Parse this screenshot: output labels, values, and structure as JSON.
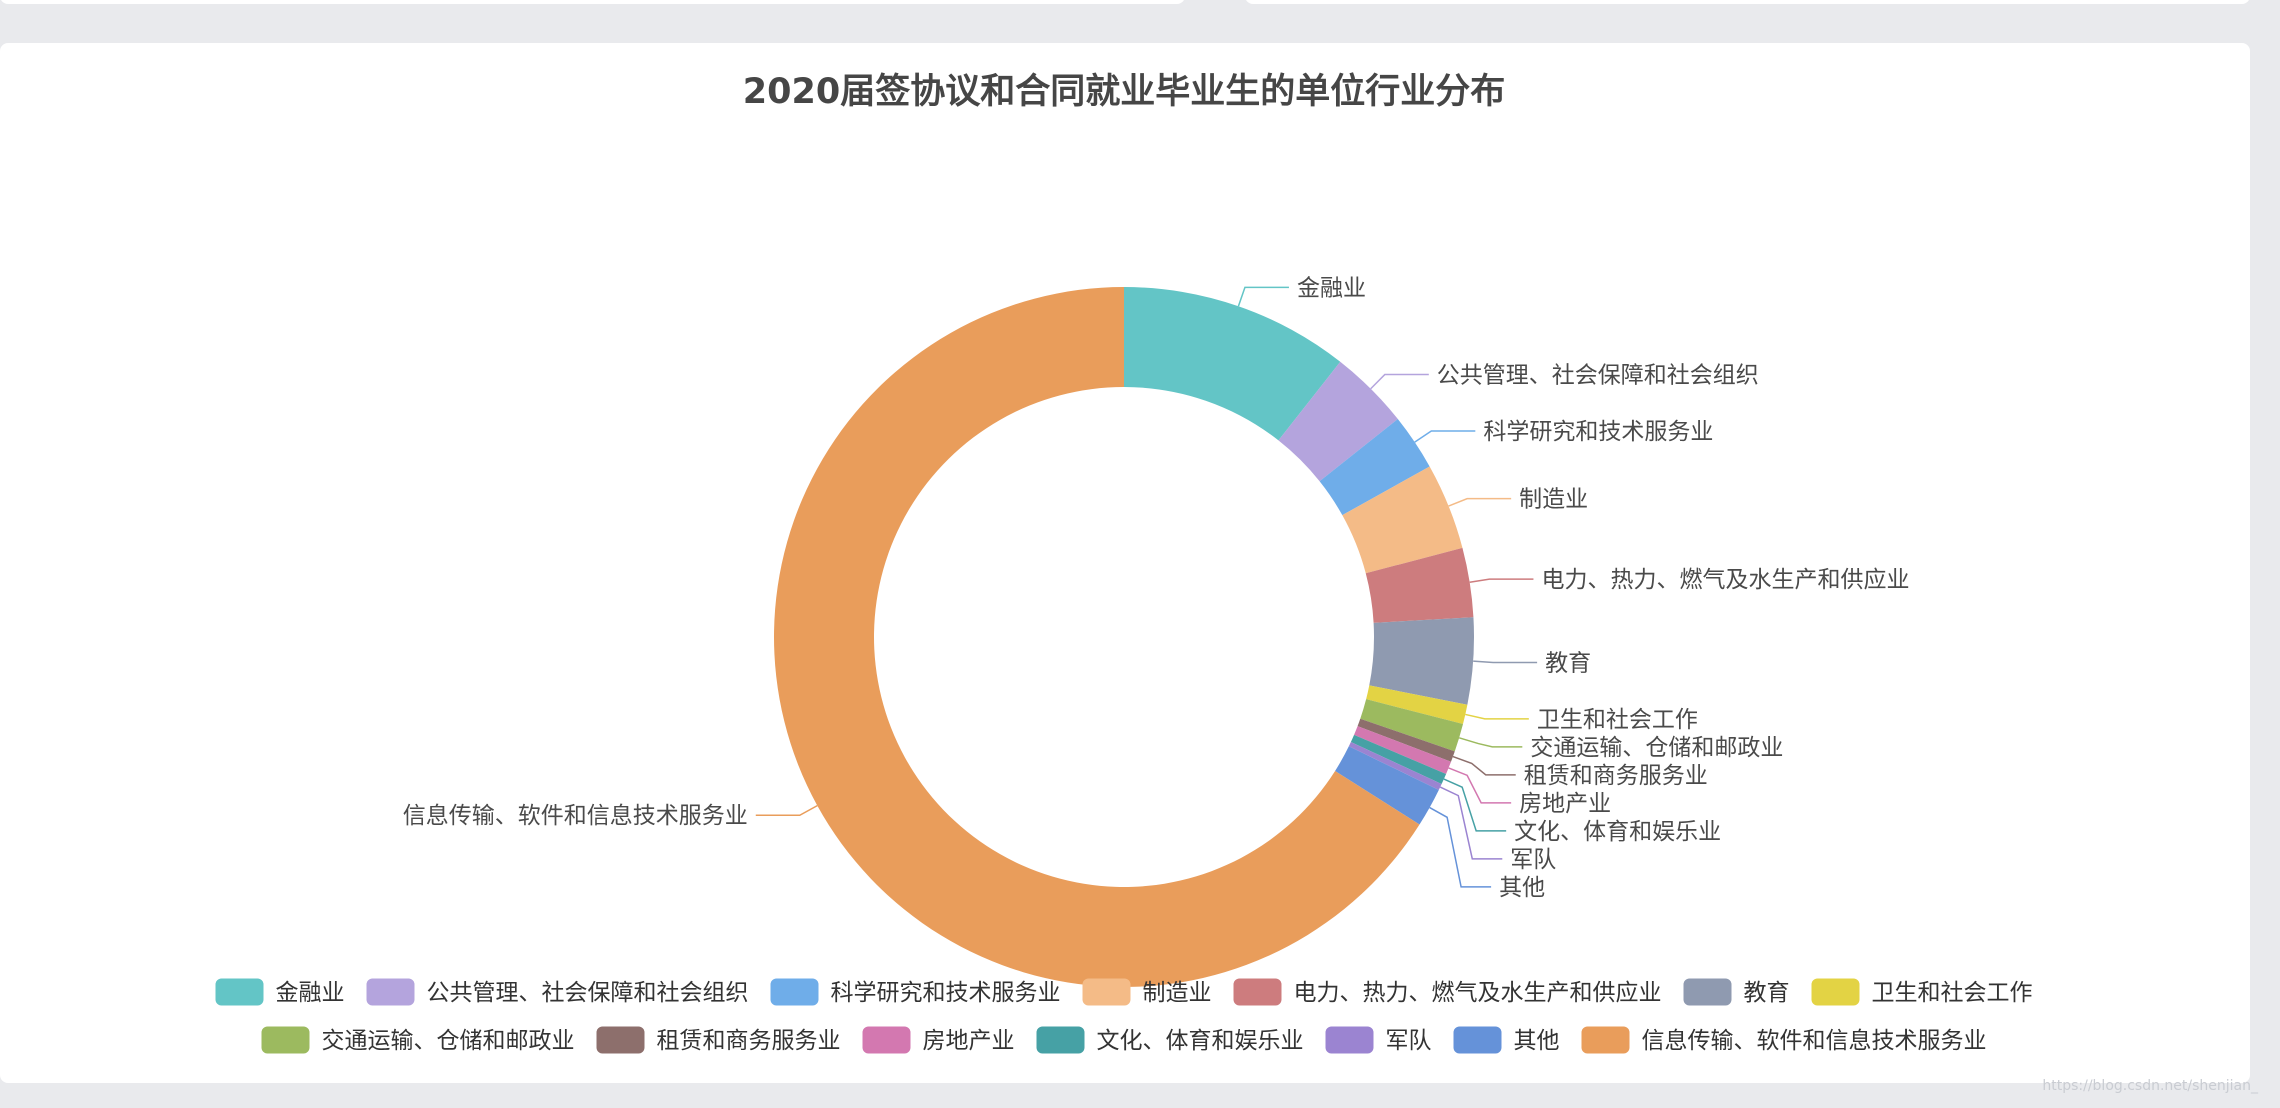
{
  "chart_data": {
    "type": "pie",
    "subtype": "donut",
    "title": "2020届签协议和合同就业毕业生的单位行业分布",
    "legend_position": "bottom",
    "categories": [
      "金融业",
      "公共管理、社会保障和社会组织",
      "科学研究和技术服务业",
      "制造业",
      "电力、热力、燃气及水生产和供应业",
      "教育",
      "卫生和社会工作",
      "交通运输、仓储和邮政业",
      "租赁和商务服务业",
      "房地产业",
      "文化、体育和娱乐业",
      "军队",
      "其他",
      "信息传输、软件和信息技术服务业"
    ],
    "values": [
      10.6,
      3.7,
      2.6,
      4.0,
      3.2,
      4.0,
      0.9,
      1.3,
      0.5,
      0.6,
      0.5,
      0.3,
      1.8,
      66.0
    ],
    "colors": [
      "#63c5c6",
      "#b4a4dd",
      "#6fade9",
      "#f4bb87",
      "#cd7c7e",
      "#8f9ab0",
      "#e3d344",
      "#9cba5f",
      "#8d6f6c",
      "#d378b0",
      "#46a1a5",
      "#9b84d1",
      "#6592d9",
      "#e99d5b"
    ]
  },
  "watermark": "https://blog.csdn.net/shenjian_"
}
